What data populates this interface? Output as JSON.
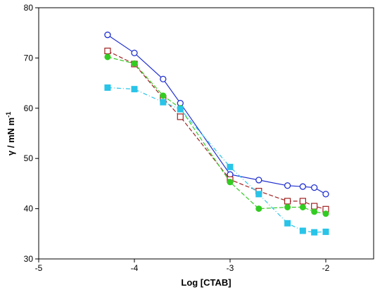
{
  "chart_data": {
    "type": "line",
    "title": "",
    "xlabel": "Log [CTAB]",
    "ylabel": "γ / mN m",
    "ylabel_sup": "-1",
    "xlim": [
      -5,
      -1.5
    ],
    "ylim": [
      30,
      80
    ],
    "xticks": [
      -5,
      -4,
      -3,
      -2
    ],
    "yticks": [
      30,
      40,
      50,
      60,
      70,
      80
    ],
    "grid": false,
    "series": [
      {
        "color": "#1f2fcf",
        "marker": "open-circle",
        "line": "solid",
        "x": [
          -4.28,
          -4.0,
          -3.7,
          -3.52,
          -3.0,
          -2.7,
          -2.4,
          -2.24,
          -2.12,
          -2.0
        ],
        "y": [
          74.6,
          71.0,
          65.8,
          61.0,
          46.8,
          45.7,
          44.6,
          44.4,
          44.2,
          42.9
        ]
      },
      {
        "color": "#a02020",
        "marker": "open-square",
        "line": "dashed",
        "x": [
          -4.28,
          -4.0,
          -3.7,
          -3.52,
          -3.0,
          -2.7,
          -2.4,
          -2.24,
          -2.12,
          -2.0
        ],
        "y": [
          71.4,
          68.8,
          62.0,
          58.3,
          45.8,
          43.5,
          41.5,
          41.5,
          40.5,
          39.9
        ]
      },
      {
        "color": "#33cc22",
        "marker": "filled-circle",
        "line": "dashed",
        "x": [
          -4.28,
          -4.0,
          -3.7,
          -3.52,
          -3.0,
          -2.7,
          -2.4,
          -2.24,
          -2.12,
          -2.0
        ],
        "y": [
          70.2,
          68.9,
          62.5,
          60.0,
          45.3,
          40.0,
          40.3,
          40.3,
          39.4,
          39.0
        ]
      },
      {
        "color": "#29c4e8",
        "marker": "filled-square",
        "line": "dash-dot",
        "x": [
          -4.28,
          -4.0,
          -3.7,
          -3.52,
          -3.0,
          -2.7,
          -2.4,
          -2.24,
          -2.12,
          -2.0
        ],
        "y": [
          64.1,
          63.8,
          61.2,
          59.8,
          48.3,
          42.9,
          37.1,
          35.6,
          35.3,
          35.4
        ]
      }
    ]
  }
}
